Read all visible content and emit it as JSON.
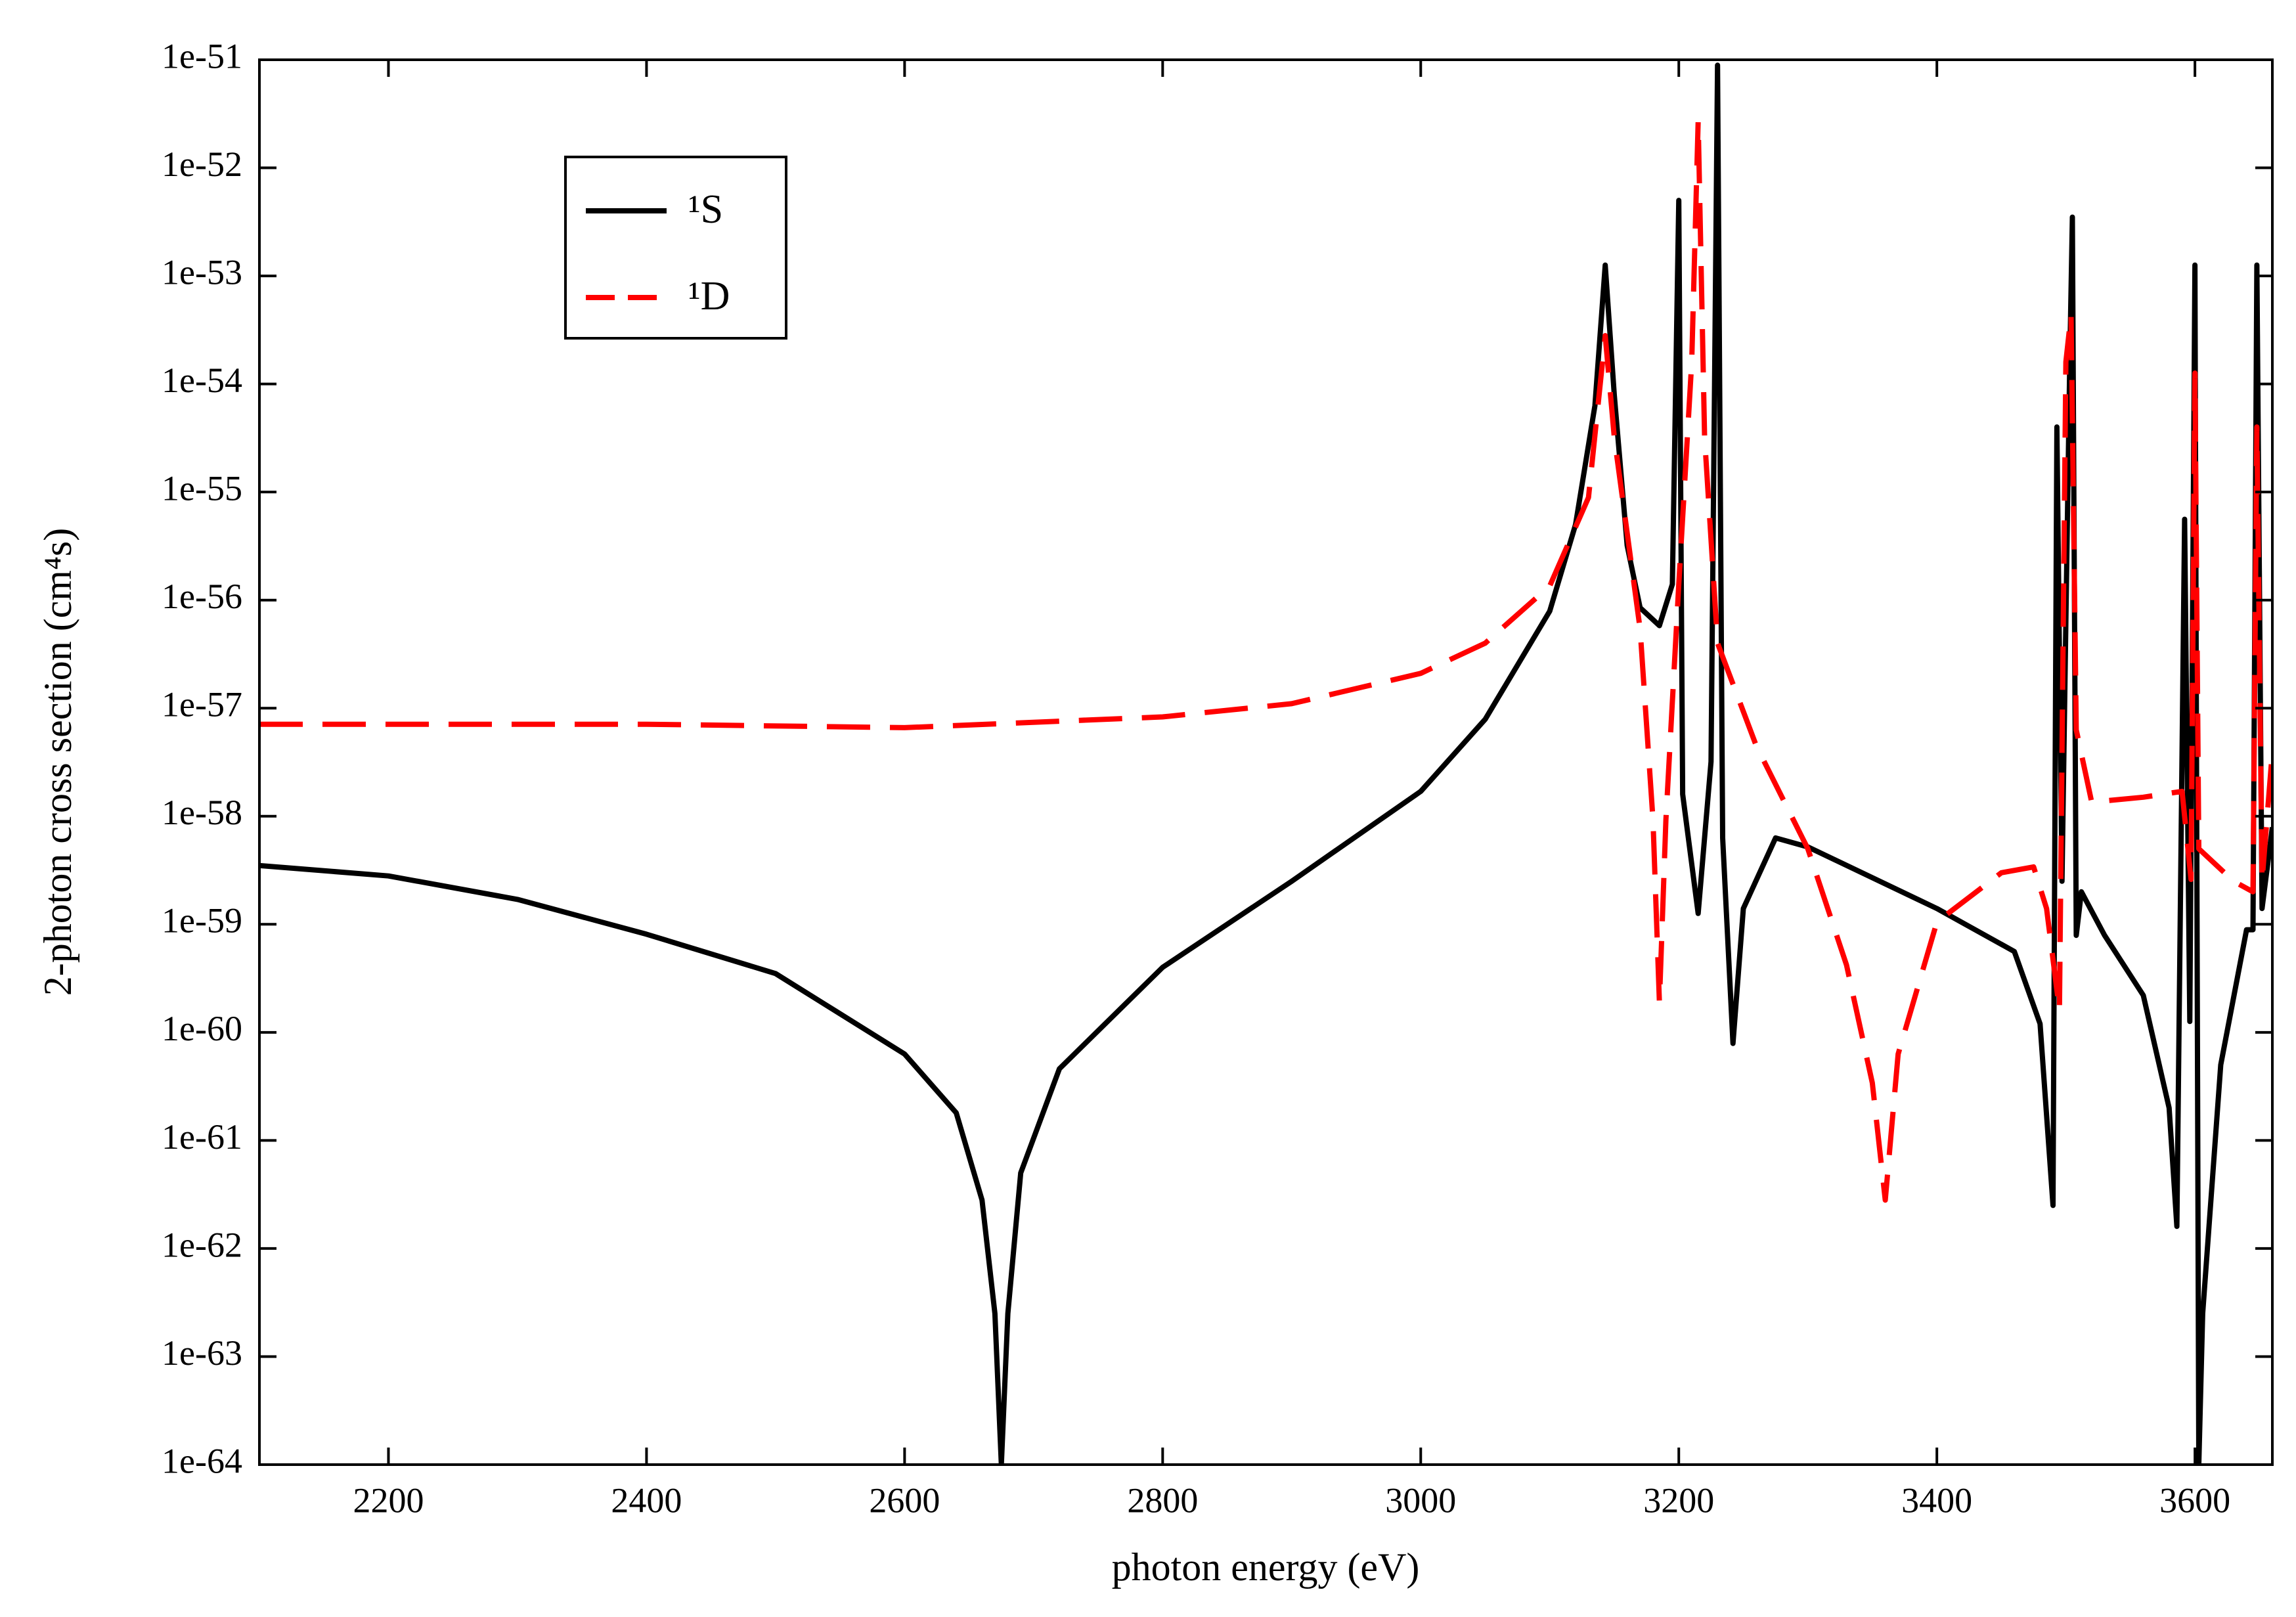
{
  "chart_data": {
    "type": "line",
    "xlabel": "photon energy (eV)",
    "ylabel": "2-photon cross section (cm⁴s)",
    "log_y": true,
    "legend": "upper left",
    "xlim": [
      2100,
      3660
    ],
    "xticks": [
      2200,
      2400,
      2600,
      2800,
      3000,
      3200,
      3400,
      3600
    ],
    "ylim": [
      1e-64,
      1e-51
    ],
    "yticks": [
      {
        "value": 1e-64,
        "label": "1e-64"
      },
      {
        "value": 1e-63,
        "label": "1e-63"
      },
      {
        "value": 1e-62,
        "label": "1e-62"
      },
      {
        "value": 1e-61,
        "label": "1e-61"
      },
      {
        "value": 1e-60,
        "label": "1e-60"
      },
      {
        "value": 1e-59,
        "label": "1e-59"
      },
      {
        "value": 1e-58,
        "label": "1e-58"
      },
      {
        "value": 1e-57,
        "label": "1e-57"
      },
      {
        "value": 1e-56,
        "label": "1e-56"
      },
      {
        "value": 1e-55,
        "label": "1e-55"
      },
      {
        "value": 1e-54,
        "label": "1e-54"
      },
      {
        "value": 1e-53,
        "label": "1e-53"
      },
      {
        "value": 1e-52,
        "label": "1e-52"
      },
      {
        "value": 1e-51,
        "label": "1e-51"
      }
    ],
    "series": [
      {
        "name": "¹S",
        "color": "#000000",
        "dash": false,
        "x": [
          2100,
          2200,
          2300,
          2400,
          2500,
          2600,
          2640,
          2660,
          2670,
          2675,
          2680,
          2690,
          2720,
          2800,
          2900,
          3000,
          3050,
          3100,
          3120,
          3135,
          3143,
          3150,
          3160,
          3170,
          3185,
          3195,
          3200,
          3203,
          3215,
          3225,
          3230,
          3234,
          3242,
          3250,
          3275,
          3300,
          3400,
          3460,
          3480,
          3490,
          3493,
          3497,
          3503,
          3505,
          3508,
          3512,
          3530,
          3560,
          3580,
          3586,
          3592,
          3596,
          3600,
          3603,
          3606,
          3620,
          3640,
          3645,
          3648,
          3652,
          3660
        ],
        "values": [
          3.5e-59,
          2.8e-59,
          1.7e-59,
          8.1e-60,
          3.5e-60,
          6.3e-61,
          1.8e-61,
          2.8e-62,
          2.5e-63,
          1e-64,
          2.5e-63,
          5e-62,
          4.6e-61,
          4e-60,
          2.5e-59,
          1.7e-58,
          7.9e-58,
          7.9e-57,
          5e-56,
          6.3e-55,
          1.26e-53,
          7.9e-55,
          3.2e-56,
          8.5e-57,
          5.8e-57,
          1.4e-56,
          5e-53,
          1.6e-58,
          1.26e-59,
          3.2e-58,
          8.9e-52,
          6.3e-59,
          7.9e-61,
          1.4e-59,
          6.3e-59,
          5.2e-59,
          1.4e-59,
          5.6e-60,
          1.2e-60,
          2.5e-62,
          4e-55,
          2.5e-59,
          1.6e-54,
          3.5e-53,
          7.9e-60,
          2e-59,
          7.9e-60,
          2.2e-60,
          2e-61,
          1.6e-62,
          5.6e-56,
          1.26e-60,
          1.26e-53,
          1e-64,
          2.5e-63,
          5e-61,
          8.9e-60,
          8.9e-60,
          1.26e-53,
          1.4e-59,
          7.9e-59
        ]
      },
      {
        "name": "¹D",
        "color": "#ff0000",
        "dash": true,
        "x": [
          2100,
          2400,
          2600,
          2800,
          2900,
          3000,
          3050,
          3100,
          3130,
          3143,
          3150,
          3170,
          3180,
          3185,
          3190,
          3200,
          3210,
          3215,
          3220,
          3230,
          3260,
          3300,
          3330,
          3350,
          3360,
          3370,
          3400,
          3450,
          3475,
          3485,
          3495,
          3500,
          3504,
          3508,
          3520,
          3560,
          3590,
          3597,
          3600,
          3603,
          3630,
          3645,
          3648,
          3652,
          3660
        ],
        "values": [
          7.1e-58,
          7.1e-58,
          6.6e-58,
          8.3e-58,
          1.1e-57,
          2.1e-57,
          4e-57,
          1.35e-56,
          8.9e-56,
          2.8e-54,
          3.2e-55,
          5.4e-57,
          9.3e-59,
          1.9e-60,
          9.3e-59,
          1.4e-56,
          1.6e-54,
          2.7e-52,
          3.2e-55,
          4e-57,
          4.5e-58,
          5e-59,
          4.2e-60,
          3.4e-61,
          2.8e-62,
          6.3e-61,
          1.05e-59,
          3e-59,
          3.4e-59,
          1.4e-59,
          1.6e-60,
          1.6e-54,
          4.4e-54,
          6.3e-58,
          1.35e-58,
          1.5e-58,
          1.7e-58,
          2.6e-59,
          1.26e-54,
          5e-59,
          2.5e-59,
          2e-59,
          4e-55,
          2.5e-59,
          4e-58
        ]
      }
    ]
  }
}
